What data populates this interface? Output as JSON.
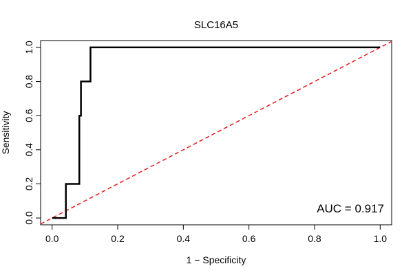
{
  "chart_data": {
    "type": "line",
    "title": "SLC16A5",
    "xlabel": "1 − Specificity",
    "ylabel": "Sensitivity",
    "xlim": [
      -0.035,
      1.035
    ],
    "ylim": [
      -0.04,
      1.04
    ],
    "x_ticks": [
      0.0,
      0.2,
      0.4,
      0.6,
      0.8,
      1.0
    ],
    "x_tick_labels": [
      "0.0",
      "0.2",
      "0.4",
      "0.6",
      "0.8",
      "1.0"
    ],
    "y_ticks": [
      0.0,
      0.2,
      0.4,
      0.6,
      0.8,
      1.0
    ],
    "y_tick_labels": [
      "0.0",
      "0.2",
      "0.4",
      "0.6",
      "0.8",
      "1.0"
    ],
    "grid": false,
    "series": [
      {
        "name": "ROC curve",
        "color": "#000000",
        "style": "solid",
        "points": [
          [
            0.0,
            0.0
          ],
          [
            0.042,
            0.0
          ],
          [
            0.042,
            0.2
          ],
          [
            0.083,
            0.2
          ],
          [
            0.083,
            0.4
          ],
          [
            0.083,
            0.6
          ],
          [
            0.088,
            0.6
          ],
          [
            0.088,
            0.8
          ],
          [
            0.117,
            0.8
          ],
          [
            0.117,
            1.0
          ],
          [
            1.0,
            1.0
          ]
        ]
      },
      {
        "name": "Reference line",
        "color": "#e41a1c",
        "style": "dashed",
        "points": [
          [
            -0.035,
            -0.035
          ],
          [
            1.035,
            1.035
          ]
        ]
      }
    ],
    "annotations": [
      {
        "text": "AUC = 0.917",
        "position": "bottom-right"
      }
    ]
  }
}
